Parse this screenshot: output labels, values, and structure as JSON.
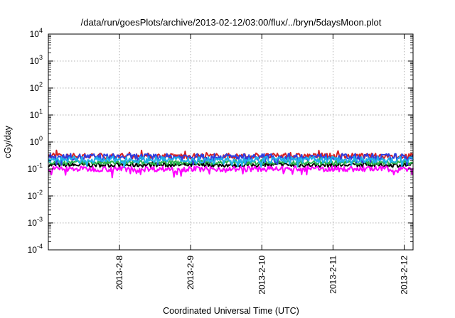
{
  "chart_data": {
    "type": "line",
    "title": "/data/run/goesPlots/archive/2013-02-12/03:00/flux/../bryn/5daysMoon.plot",
    "xlabel": "Coordinated Universal Time (UTC)",
    "ylabel": "cGy/day",
    "yscale": "log",
    "ylim": [
      0.0001,
      10000
    ],
    "x_range": [
      "2013-02-07T00:00",
      "2013-02-12T03:00"
    ],
    "grid": true,
    "legend": "none",
    "y_ticks": [
      {
        "value": 0.0001,
        "mant": "10",
        "exp": "-4"
      },
      {
        "value": 0.001,
        "mant": "10",
        "exp": "-3"
      },
      {
        "value": 0.01,
        "mant": "10",
        "exp": "-2"
      },
      {
        "value": 0.1,
        "mant": "10",
        "exp": "-1"
      },
      {
        "value": 1,
        "mant": "10",
        "exp": "0"
      },
      {
        "value": 10,
        "mant": "10",
        "exp": "1"
      },
      {
        "value": 100,
        "mant": "10",
        "exp": "2"
      },
      {
        "value": 1000,
        "mant": "10",
        "exp": "3"
      },
      {
        "value": 10000,
        "mant": "10",
        "exp": "4"
      }
    ],
    "x_ticks": [
      {
        "value": "2013-02-08",
        "label": "2013-2-8"
      },
      {
        "value": "2013-02-09",
        "label": "2013-2-9"
      },
      {
        "value": "2013-02-10",
        "label": "2013-2-10"
      },
      {
        "value": "2013-02-11",
        "label": "2013-2-11"
      },
      {
        "value": "2013-02-12",
        "label": "2013-2-12"
      }
    ],
    "series": [
      {
        "color": "#000000",
        "base": 0.14,
        "jitter": 0.08,
        "dips": false
      },
      {
        "color": "#d62020",
        "base": 0.3,
        "jitter": 0.1,
        "dips": false
      },
      {
        "color": "#2ab24a",
        "base": 0.17,
        "jitter": 0.08,
        "dips": false
      },
      {
        "color": "#2f3ee0",
        "base": 0.28,
        "jitter": 0.12,
        "dips": true
      },
      {
        "color": "#ff00ff",
        "base": 0.1,
        "jitter": 0.1,
        "dips": true
      },
      {
        "color": "#1fb0e8",
        "base": 0.22,
        "jitter": 0.12,
        "dips": true
      }
    ]
  }
}
